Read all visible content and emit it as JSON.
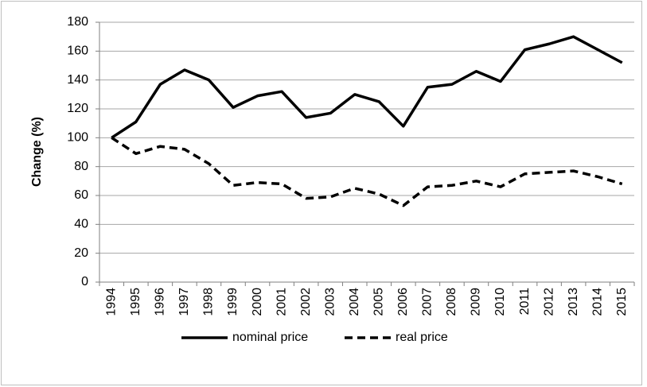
{
  "chart_data": {
    "type": "line",
    "y_label": "Change (%)",
    "categories": [
      "1994",
      "1995",
      "1996",
      "1997",
      "1998",
      "1999",
      "2000",
      "2001",
      "2002",
      "2003",
      "2004",
      "2005",
      "2006",
      "2007",
      "2008",
      "2009",
      "2010",
      "2011",
      "2012",
      "2013",
      "2014",
      "2015"
    ],
    "series": [
      {
        "name": "nominal price",
        "color": "#000000",
        "line_style": "solid",
        "values": [
          100,
          111,
          137,
          147,
          140,
          121,
          129,
          132,
          114,
          117,
          130,
          125,
          108,
          135,
          137,
          146,
          139,
          161,
          165,
          170,
          161,
          152
        ]
      },
      {
        "name": "real price",
        "color": "#000000",
        "line_style": "dashed",
        "values": [
          100,
          89,
          94,
          92,
          82,
          67,
          69,
          68,
          58,
          59,
          65,
          61,
          53,
          66,
          67,
          70,
          66,
          75,
          76,
          77,
          73,
          68
        ]
      }
    ],
    "ylim": [
      0,
      180
    ],
    "yticks": [
      0,
      20,
      40,
      60,
      80,
      100,
      120,
      140,
      160,
      180
    ],
    "grid": true,
    "legend": "bottom"
  }
}
